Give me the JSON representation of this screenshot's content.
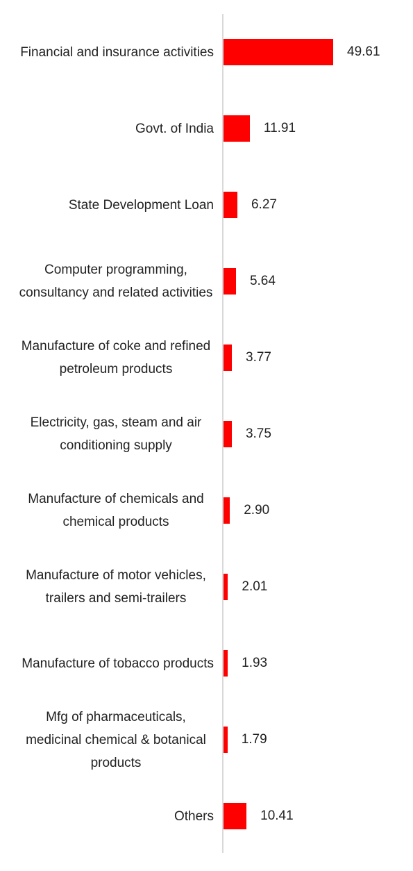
{
  "chart_data": {
    "type": "bar",
    "orientation": "horizontal",
    "categories": [
      "Financial and insurance activities",
      "Govt. of India",
      "State Development Loan",
      "Computer programming, consultancy and related activities",
      "Manufacture of coke and refined petroleum products",
      "Electricity, gas, steam and air conditioning supply",
      "Manufacture of chemicals and chemical products",
      "Manufacture of motor vehicles, trailers and semi-trailers",
      "Manufacture of tobacco products",
      "Mfg of pharmaceuticals, medicinal chemical & botanical products",
      "Others"
    ],
    "values": [
      49.61,
      11.91,
      6.27,
      5.64,
      3.77,
      3.75,
      2.9,
      2.01,
      1.93,
      1.79,
      10.41
    ],
    "value_labels": [
      "49.61",
      "11.91",
      "6.27",
      "5.64",
      "3.77",
      "3.75",
      "2.90",
      "2.01",
      "1.93",
      "1.79",
      "10.41"
    ],
    "color": "#ff0000"
  }
}
